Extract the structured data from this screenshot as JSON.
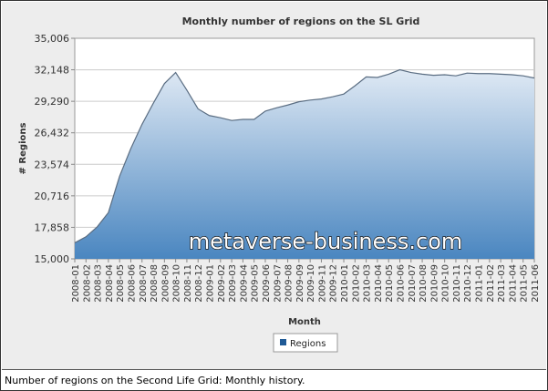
{
  "caption": "Number of regions on the Second Life Grid: Monthly history.",
  "watermark": "metaverse-business.com",
  "chart_data": {
    "type": "area",
    "title": "Monthly number of regions on the SL Grid",
    "xlabel": "Month",
    "ylabel": "# Regions",
    "ylim": [
      15000,
      35006
    ],
    "yticks": [
      15000,
      17858,
      20716,
      23574,
      26432,
      29290,
      32148,
      35006
    ],
    "ytick_labels": [
      "15,000",
      "17,858",
      "20,716",
      "23,574",
      "26,432",
      "29,290",
      "32,148",
      "35,006"
    ],
    "grid": true,
    "legend": "bottom-center",
    "colors": {
      "fill_top": "#dfe9f4",
      "fill_bottom": "#4a86c0",
      "line": "#5a6d82",
      "legend_swatch": "#1f5a96"
    },
    "categories": [
      "2008-01",
      "2008-02",
      "2008-03",
      "2008-04",
      "2008-05",
      "2008-06",
      "2008-07",
      "2008-08",
      "2008-09",
      "2008-10",
      "2008-11",
      "2008-12",
      "2009-01",
      "2009-02",
      "2009-03",
      "2009-04",
      "2009-05",
      "2009-06",
      "2009-07",
      "2009-08",
      "2009-09",
      "2009-10",
      "2009-11",
      "2009-12",
      "2010-01",
      "2010-02",
      "2010-03",
      "2010-04",
      "2010-05",
      "2010-06",
      "2010-07",
      "2010-08",
      "2010-09",
      "2010-10",
      "2010-11",
      "2010-12",
      "2011-01",
      "2011-02",
      "2011-03",
      "2011-04",
      "2011-05",
      "2011-06"
    ],
    "series": [
      {
        "name": "Regions",
        "values": [
          16450,
          17000,
          17900,
          19200,
          22500,
          25000,
          27200,
          29100,
          30900,
          31900,
          30300,
          28600,
          28000,
          27800,
          27550,
          27650,
          27650,
          28400,
          28700,
          28950,
          29250,
          29400,
          29500,
          29700,
          29950,
          30700,
          31500,
          31450,
          31750,
          32150,
          31900,
          31750,
          31650,
          31700,
          31600,
          31850,
          31800,
          31800,
          31750,
          31700,
          31600,
          31400
        ]
      }
    ]
  }
}
